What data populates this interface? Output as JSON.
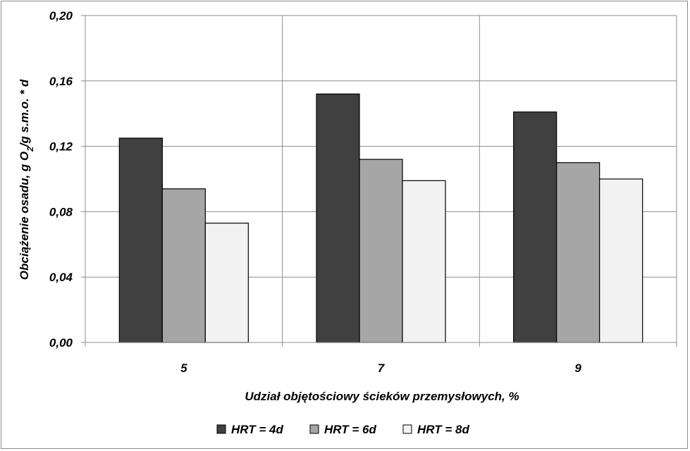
{
  "chart_data": {
    "type": "bar",
    "title": "",
    "xlabel": "Udział objętościowy ścieków przemysłowych, %",
    "ylabel": "Obciążenie osadu, g O2/g s.m.o. * d",
    "ylim": [
      0,
      0.2
    ],
    "yticks": [
      "0,00",
      "0,04",
      "0,08",
      "0,12",
      "0,16",
      "0,20"
    ],
    "ytick_values": [
      0,
      0.04,
      0.08,
      0.12,
      0.16,
      0.2
    ],
    "categories": [
      "5",
      "7",
      "9"
    ],
    "series": [
      {
        "name": "HRT = 4d",
        "values": [
          0.125,
          0.152,
          0.141
        ],
        "color": "#404040"
      },
      {
        "name": "HRT = 6d",
        "values": [
          0.094,
          0.112,
          0.11
        ],
        "color": "#a6a6a6"
      },
      {
        "name": "HRT = 8d",
        "values": [
          0.073,
          0.099,
          0.1
        ],
        "color": "#f2f2f2"
      }
    ],
    "grid": true,
    "legend_position": "bottom"
  }
}
